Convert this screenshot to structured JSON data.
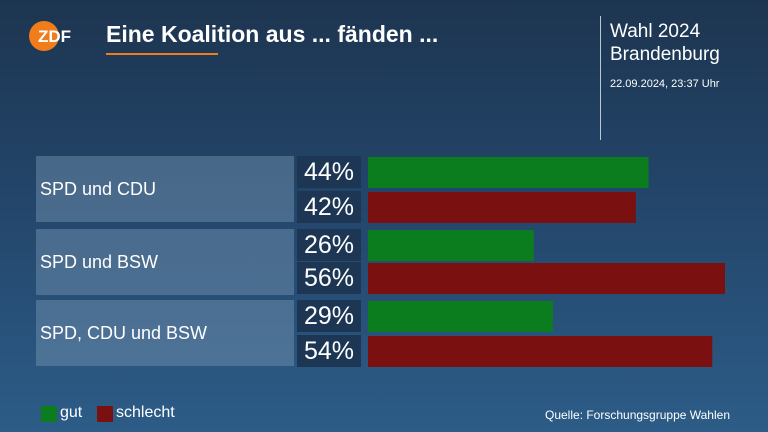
{
  "header": {
    "logo_text": "ZDF",
    "title": "Eine Koalition aus ... fänden ...",
    "election_line1": "Wahl 2024",
    "election_line2": "Brandenburg",
    "timestamp": "22.09.2024, 23:37 Uhr"
  },
  "colors": {
    "gut": "#0b7d1f",
    "schlecht": "#7a1010",
    "accent": "#f07c1a",
    "percent_box": "#1c3654"
  },
  "legend": {
    "gut_label": "gut",
    "schlecht_label": "schlecht"
  },
  "source": "Quelle: Forschungsgruppe Wahlen",
  "chart_data": {
    "type": "bar",
    "categories": [
      "SPD und CDU",
      "SPD und BSW",
      "SPD, CDU und BSW"
    ],
    "series": [
      {
        "name": "gut",
        "values": [
          44,
          26,
          29
        ],
        "labels": [
          "44%",
          "26%",
          "29%"
        ]
      },
      {
        "name": "schlecht",
        "values": [
          42,
          56,
          54
        ],
        "labels": [
          "42%",
          "56%",
          "54%"
        ]
      }
    ],
    "unit": "%",
    "xlim": [
      0,
      56
    ],
    "grid": false,
    "legend_placement": "bottom-left"
  }
}
